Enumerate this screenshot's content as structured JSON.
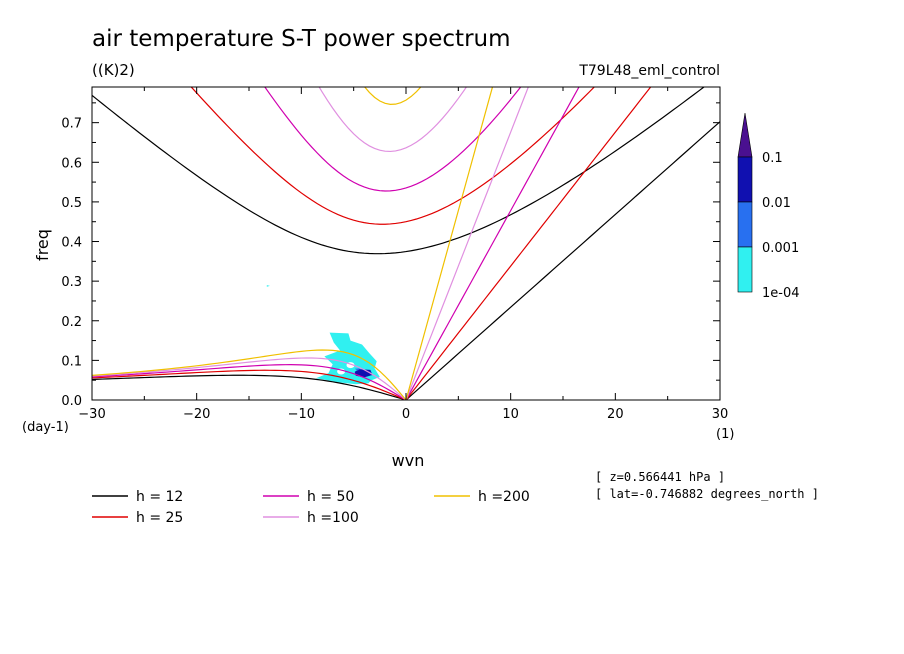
{
  "chart_data": {
    "type": "line",
    "title": "air temperature S-T power spectrum",
    "units_label": "((K)2)",
    "run_label": "T79L48_eml_control",
    "xlabel": "wvn",
    "ylabel": "freq",
    "x_unit": "(1)",
    "y_unit": "(day-1)",
    "xlim": [
      -30,
      30
    ],
    "ylim": [
      0,
      0.79
    ],
    "xticks": [
      -30,
      -20,
      -10,
      0,
      10,
      20,
      30
    ],
    "yticks": [
      0.0,
      0.1,
      0.2,
      0.3,
      0.4,
      0.5,
      0.6,
      0.7
    ],
    "ytick_labels": [
      "0.0",
      "0.1",
      "0.2",
      "0.3",
      "0.4",
      "0.5",
      "0.6",
      "0.7"
    ],
    "grid": false,
    "info_lines": [
      "[ z=0.566441 hPa ]",
      "[ lat=-0.746882 degrees_north ]"
    ],
    "series": [
      {
        "name": "h = 12",
        "color": "#000000",
        "h": 12
      },
      {
        "name": "h = 25",
        "color": "#e00000",
        "h": 25
      },
      {
        "name": "h = 50",
        "color": "#d000b0",
        "h": 50
      },
      {
        "name": "h =100",
        "color": "#e090e0",
        "h": 100
      },
      {
        "name": "h =200",
        "color": "#f0c000",
        "h": 200
      }
    ],
    "colorbar": {
      "labels": [
        "0.1",
        "0.01",
        "0.001",
        "1e-04"
      ],
      "colors": [
        "#4a1090",
        "#1010b0",
        "#2870f0",
        "#30f0f0"
      ]
    },
    "contours": [
      {
        "level": "1e-04",
        "color": "#30f0f0"
      },
      {
        "level": "0.001",
        "color": "#2870f0"
      },
      {
        "level": "0.01",
        "color": "#1010b0"
      }
    ]
  }
}
